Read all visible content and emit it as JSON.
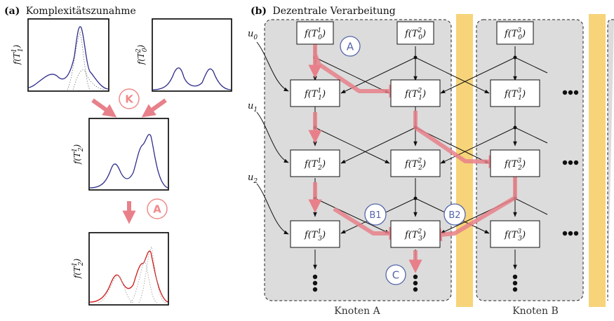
{
  "panel_a": {
    "label": "(a)",
    "title": "Komplexitätszunahme",
    "plot1_ylabel": "f(T",
    "plot1_sup": "1",
    "plot1_sub": "1",
    "plot2_ylabel": "f(T",
    "plot2_sup": "2",
    "plot2_sub": "0",
    "plot3_ylabel": "f(T",
    "plot3_sup": "1",
    "plot3_sub": "2",
    "plot4_ylabel": "f(T",
    "plot4_sup": "1",
    "plot4_sub": "2",
    "badge_k": "K",
    "badge_a": "A"
  },
  "panel_b": {
    "label": "(b)",
    "title": "Dezentrale Verarbeitung",
    "node_a_label": "Knoten A",
    "node_b_label": "Knoten B",
    "u0": "u",
    "u0_sub": "0",
    "u1": "u",
    "u1_sub": "1",
    "u2": "u",
    "u2_sub": "2",
    "badge_a": "A",
    "badge_b1": "B1",
    "badge_b2": "B2",
    "badge_c": "C",
    "ellipsis": "•••",
    "f_prefix": "f(T",
    "f_suffix": ")",
    "boxes": [
      {
        "sup": "1",
        "sub": "0"
      },
      {
        "sup": "2",
        "sub": "0"
      },
      {
        "sup": "3",
        "sub": "0"
      },
      {
        "sup": "1",
        "sub": "1"
      },
      {
        "sup": "2",
        "sub": "1"
      },
      {
        "sup": "3",
        "sub": "1"
      },
      {
        "sup": "1",
        "sub": "2"
      },
      {
        "sup": "2",
        "sub": "2"
      },
      {
        "sup": "3",
        "sub": "2"
      },
      {
        "sup": "1",
        "sub": "3"
      },
      {
        "sup": "2",
        "sub": "3"
      },
      {
        "sup": "3",
        "sub": "3"
      }
    ]
  },
  "colors": {
    "highlight": "#e8808a",
    "badge_red": "#f08a8a",
    "badge_blue": "#5566aa",
    "orange": "#f7d47a",
    "node_bg": "#dcdcdc",
    "curve_blue": "#2d2d8c",
    "curve_red": "#d01818"
  }
}
